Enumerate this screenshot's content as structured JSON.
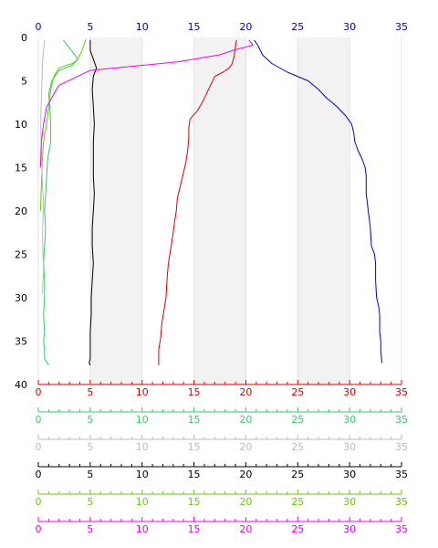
{
  "chart_data": {
    "type": "line",
    "title": "",
    "xlabel": "",
    "ylabel": "",
    "xlim": [
      0,
      35
    ],
    "ylim": [
      0,
      40
    ],
    "y_inverted": true,
    "grid": "alternating vertical bands",
    "top_axis": {
      "color": "#0000cc",
      "ticks": [
        "0",
        "5",
        "10",
        "15",
        "20",
        "25",
        "30",
        "35"
      ]
    },
    "y_ticks": [
      "0",
      "5",
      "10",
      "15",
      "20",
      "25",
      "30",
      "35",
      "40"
    ],
    "bottom_axes": [
      {
        "color": "#dd0000",
        "ticks": [
          "0",
          "5",
          "10",
          "15",
          "20",
          "25",
          "30",
          "35"
        ]
      },
      {
        "color": "#33cc66",
        "ticks": [
          "0",
          "5",
          "10",
          "15",
          "20",
          "25",
          "30",
          "35"
        ]
      },
      {
        "color": "#bbbbbb",
        "ticks": [
          "0",
          "5",
          "10",
          "15",
          "20",
          "25",
          "30",
          "35"
        ]
      },
      {
        "color": "#000000",
        "ticks": [
          "0",
          "5",
          "10",
          "15",
          "20",
          "25",
          "30",
          "35"
        ]
      },
      {
        "color": "#66cc00",
        "ticks": [
          "0",
          "5",
          "10",
          "15",
          "20",
          "25",
          "30",
          "35"
        ]
      },
      {
        "color": "#ee00ee",
        "ticks": [
          "0",
          "5",
          "10",
          "15",
          "20",
          "25",
          "30",
          "35"
        ]
      }
    ],
    "series": [
      {
        "color": "#0000cc",
        "x": [
          20.8,
          21.2,
          21.6,
          22.5,
          24.0,
          26.0,
          27.0,
          27.8,
          28.8,
          29.6,
          30.2,
          30.4,
          30.5,
          30.8,
          31.2,
          31.5,
          31.6,
          31.6,
          31.8,
          32.0,
          32.1,
          32.4,
          32.5,
          32.5,
          32.6,
          32.8,
          32.9,
          32.9,
          33.0,
          33.0,
          33.1
        ],
        "y": [
          0.3,
          1.0,
          2.0,
          3.0,
          4.0,
          5.0,
          6.0,
          7.0,
          8.0,
          9.0,
          10.0,
          11.0,
          12.0,
          13.0,
          14.0,
          15.0,
          16.0,
          18.0,
          20.0,
          22.0,
          24.0,
          25.0,
          26.0,
          28.0,
          30.0,
          31.0,
          32.0,
          34.0,
          35.0,
          36.0,
          37.5
        ]
      },
      {
        "color": "#dd0000",
        "x": [
          19.1,
          19.0,
          18.9,
          18.7,
          18.4,
          17.8,
          17.0,
          16.6,
          16.2,
          15.8,
          15.3,
          14.9,
          14.6,
          14.5,
          14.5,
          14.4,
          14.2,
          13.9,
          13.6,
          13.4,
          13.3,
          13.1,
          13.0,
          12.8,
          12.6,
          12.5,
          12.4,
          12.3,
          12.1,
          11.9,
          11.8,
          11.6,
          11.6
        ],
        "y": [
          0.3,
          1.0,
          2.0,
          3.0,
          3.5,
          4.0,
          4.5,
          5.5,
          6.5,
          7.5,
          8.5,
          9.0,
          9.5,
          10.5,
          11.5,
          13.0,
          14.5,
          16.0,
          17.5,
          18.5,
          20.0,
          21.5,
          22.5,
          24.0,
          25.5,
          26.5,
          28.0,
          30.0,
          31.5,
          33.0,
          34.5,
          36.0,
          37.8
        ]
      },
      {
        "color": "#000000",
        "x": [
          5.0,
          5.0,
          5.3,
          5.6,
          5.3,
          5.2,
          5.3,
          5.4,
          5.3,
          5.3,
          5.3,
          5.4,
          5.3,
          5.2,
          5.2,
          5.3,
          5.2,
          5.1,
          5.1,
          5.0,
          5.0,
          5.0,
          5.0,
          4.9,
          5.0
        ],
        "y": [
          0.3,
          1.5,
          2.5,
          3.5,
          4.5,
          6.0,
          8.0,
          10.0,
          12.0,
          14.0,
          16.0,
          18.0,
          20.0,
          22.0,
          24.0,
          26.0,
          28.0,
          30.0,
          32.0,
          34.0,
          35.0,
          36.0,
          37.0,
          37.5,
          37.8
        ]
      },
      {
        "color": "#33cc66",
        "x": [
          2.4,
          3.2,
          3.8,
          3.3,
          2.0,
          1.3,
          1.0,
          1.1,
          1.2,
          1.2,
          0.9,
          0.8,
          0.7,
          0.6,
          0.7,
          0.6,
          0.5,
          0.6,
          0.6,
          0.5,
          0.6,
          0.5,
          0.6,
          0.6,
          1.0
        ],
        "y": [
          0.3,
          1.5,
          2.5,
          3.2,
          3.8,
          5.0,
          6.5,
          8.0,
          10.0,
          12.0,
          14.0,
          16.0,
          18.0,
          20.0,
          22.0,
          24.0,
          26.0,
          28.0,
          30.0,
          32.0,
          34.0,
          35.0,
          36.0,
          37.0,
          37.8
        ]
      },
      {
        "color": "#66cc00",
        "x": [
          4.6,
          4.2,
          3.8,
          3.3,
          2.0,
          1.5,
          1.2,
          1.0,
          0.8,
          0.5,
          0.4,
          0.3,
          0.2
        ],
        "y": [
          0.2,
          1.5,
          2.5,
          3.0,
          3.5,
          4.5,
          6.0,
          8.0,
          10.0,
          12.0,
          14.0,
          17.0,
          20.0
        ]
      },
      {
        "color": "#bbbbbb",
        "x": [
          0.6,
          0.5,
          0.4,
          0.35,
          0.3,
          0.25,
          0.25,
          0.3,
          0.35,
          0.4,
          0.5,
          0.45,
          0.4,
          0.45,
          0.5,
          0.45,
          0.4
        ],
        "y": [
          0.3,
          1.5,
          3.0,
          5.0,
          7.0,
          9.0,
          11.0,
          13.0,
          15.0,
          17.0,
          19.0,
          21.0,
          23.0,
          25.0,
          27.0,
          28.0,
          29.5
        ]
      },
      {
        "color": "#ee00ee",
        "x": [
          20.3,
          20.7,
          19.0,
          17.5,
          13.5,
          5.0,
          2.0,
          1.5,
          0.8,
          0.5,
          0.3,
          0.2
        ],
        "y": [
          0.3,
          0.9,
          1.4,
          2.0,
          2.8,
          3.8,
          5.5,
          6.5,
          8.0,
          10.0,
          12.0,
          15.0
        ]
      }
    ]
  }
}
